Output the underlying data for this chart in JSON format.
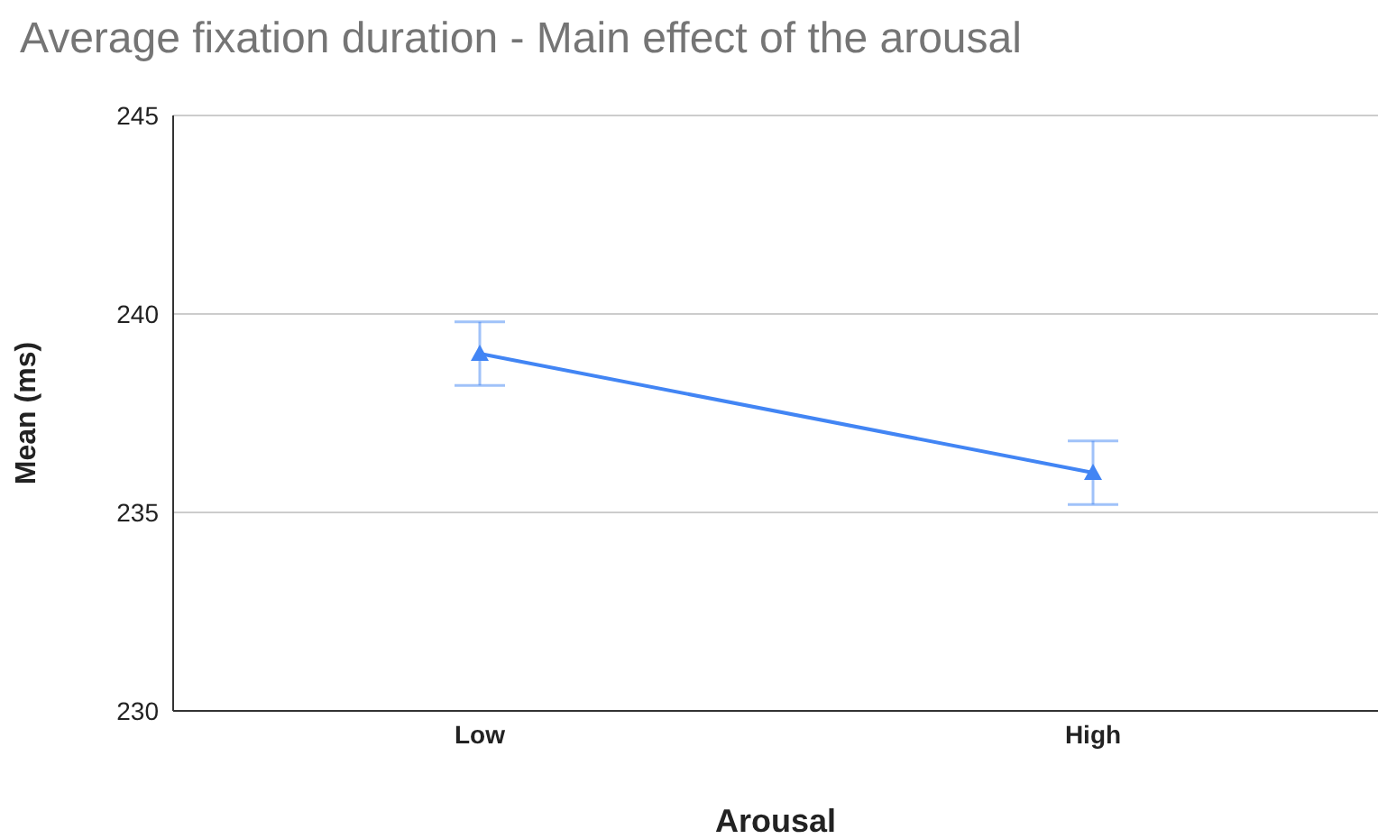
{
  "chart_data": {
    "type": "line",
    "title": "Average fixation duration - Main effect of the arousal",
    "xlabel": "Arousal",
    "ylabel": "Mean (ms)",
    "categories": [
      "Low",
      "High"
    ],
    "series": [
      {
        "color": "#4285f4",
        "values": [
          239,
          236
        ],
        "errors": [
          0.8,
          0.8
        ]
      }
    ],
    "ylim": [
      230,
      245
    ],
    "yticks": [
      230,
      235,
      240,
      245
    ],
    "grid": "y",
    "marker": "triangle"
  }
}
